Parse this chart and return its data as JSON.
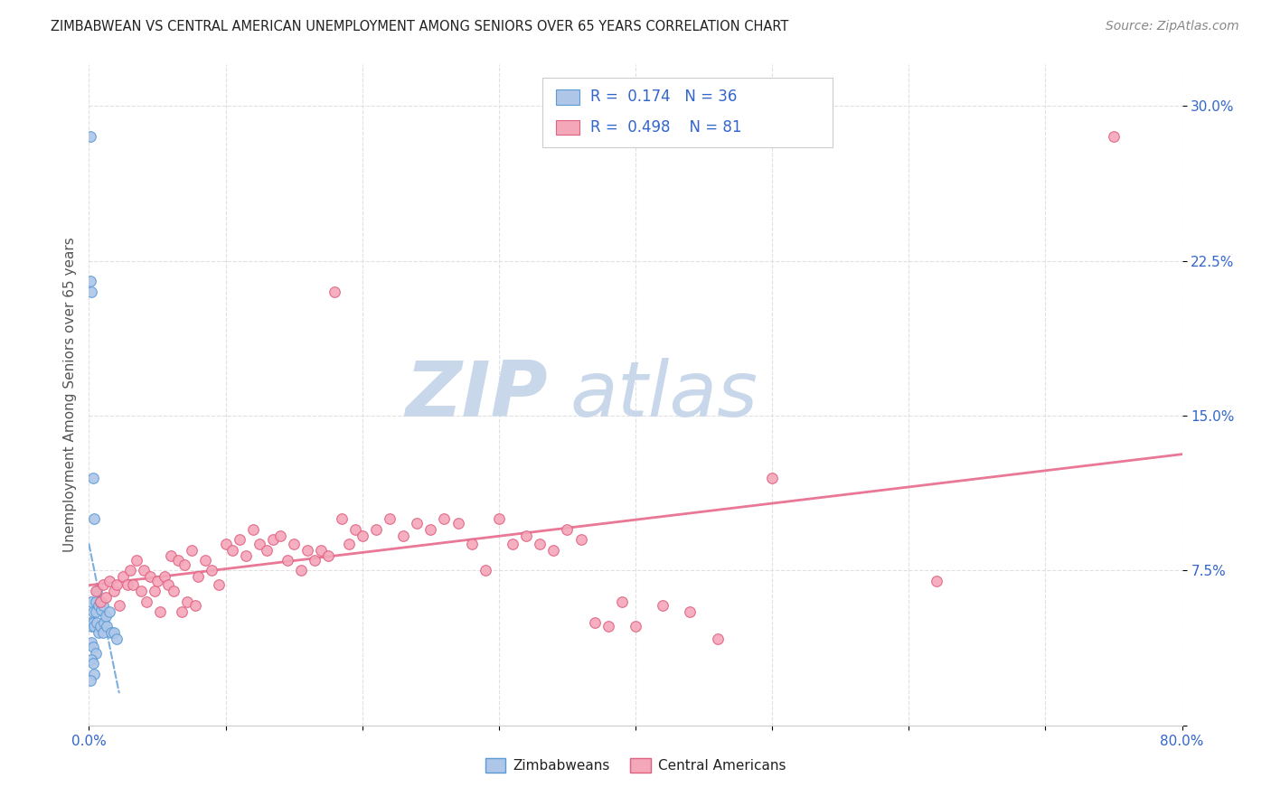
{
  "title": "ZIMBABWEAN VS CENTRAL AMERICAN UNEMPLOYMENT AMONG SENIORS OVER 65 YEARS CORRELATION CHART",
  "source": "Source: ZipAtlas.com",
  "ylabel": "Unemployment Among Seniors over 65 years",
  "xlim": [
    0.0,
    0.8
  ],
  "ylim": [
    0.0,
    0.32
  ],
  "ytick_positions": [
    0.0,
    0.075,
    0.15,
    0.225,
    0.3
  ],
  "ytick_labels": [
    "",
    "7.5%",
    "15.0%",
    "22.5%",
    "30.0%"
  ],
  "zim_R": "0.174",
  "zim_N": "36",
  "ca_R": "0.498",
  "ca_N": "81",
  "zim_color": "#aec6e8",
  "zim_edge": "#5b9bd5",
  "ca_color": "#f4a7b9",
  "ca_edge": "#e06080",
  "zim_line_color": "#5b9bd5",
  "ca_line_color": "#e87090",
  "watermark_color": "#c8d8ea",
  "background_color": "#ffffff",
  "grid_color": "#e0e0e0",
  "title_color": "#222222",
  "source_color": "#888888",
  "tick_color": "#3366cc",
  "label_color": "#555555",
  "legend_text_color": "#222222",
  "legend_rn_color": "#3366cc",
  "zim_x": [
    0.001,
    0.001,
    0.001,
    0.002,
    0.002,
    0.002,
    0.002,
    0.003,
    0.003,
    0.003,
    0.003,
    0.004,
    0.004,
    0.005,
    0.005,
    0.005,
    0.006,
    0.006,
    0.007,
    0.007,
    0.008,
    0.008,
    0.009,
    0.01,
    0.01,
    0.011,
    0.012,
    0.013,
    0.015,
    0.016,
    0.018,
    0.02,
    0.002,
    0.003,
    0.004,
    0.001
  ],
  "zim_y": [
    0.285,
    0.215,
    0.05,
    0.21,
    0.06,
    0.048,
    0.04,
    0.12,
    0.055,
    0.05,
    0.038,
    0.1,
    0.048,
    0.06,
    0.055,
    0.035,
    0.065,
    0.05,
    0.058,
    0.045,
    0.06,
    0.048,
    0.056,
    0.058,
    0.045,
    0.05,
    0.053,
    0.048,
    0.055,
    0.045,
    0.045,
    0.042,
    0.032,
    0.03,
    0.025,
    0.022
  ],
  "ca_x": [
    0.75,
    0.005,
    0.008,
    0.01,
    0.012,
    0.015,
    0.018,
    0.02,
    0.022,
    0.025,
    0.028,
    0.03,
    0.032,
    0.035,
    0.038,
    0.04,
    0.042,
    0.045,
    0.048,
    0.05,
    0.052,
    0.055,
    0.058,
    0.06,
    0.062,
    0.065,
    0.068,
    0.07,
    0.072,
    0.075,
    0.078,
    0.08,
    0.085,
    0.09,
    0.095,
    0.1,
    0.105,
    0.11,
    0.115,
    0.12,
    0.125,
    0.13,
    0.135,
    0.14,
    0.145,
    0.15,
    0.155,
    0.16,
    0.165,
    0.17,
    0.175,
    0.18,
    0.185,
    0.19,
    0.195,
    0.2,
    0.21,
    0.22,
    0.23,
    0.24,
    0.25,
    0.26,
    0.27,
    0.28,
    0.29,
    0.3,
    0.31,
    0.32,
    0.33,
    0.34,
    0.35,
    0.36,
    0.37,
    0.38,
    0.39,
    0.4,
    0.42,
    0.44,
    0.46,
    0.5,
    0.62
  ],
  "ca_y": [
    0.285,
    0.065,
    0.06,
    0.068,
    0.062,
    0.07,
    0.065,
    0.068,
    0.058,
    0.072,
    0.068,
    0.075,
    0.068,
    0.08,
    0.065,
    0.075,
    0.06,
    0.072,
    0.065,
    0.07,
    0.055,
    0.072,
    0.068,
    0.082,
    0.065,
    0.08,
    0.055,
    0.078,
    0.06,
    0.085,
    0.058,
    0.072,
    0.08,
    0.075,
    0.068,
    0.088,
    0.085,
    0.09,
    0.082,
    0.095,
    0.088,
    0.085,
    0.09,
    0.092,
    0.08,
    0.088,
    0.075,
    0.085,
    0.08,
    0.085,
    0.082,
    0.21,
    0.1,
    0.088,
    0.095,
    0.092,
    0.095,
    0.1,
    0.092,
    0.098,
    0.095,
    0.1,
    0.098,
    0.088,
    0.075,
    0.1,
    0.088,
    0.092,
    0.088,
    0.085,
    0.095,
    0.09,
    0.05,
    0.048,
    0.06,
    0.048,
    0.058,
    0.055,
    0.042,
    0.12,
    0.07
  ]
}
